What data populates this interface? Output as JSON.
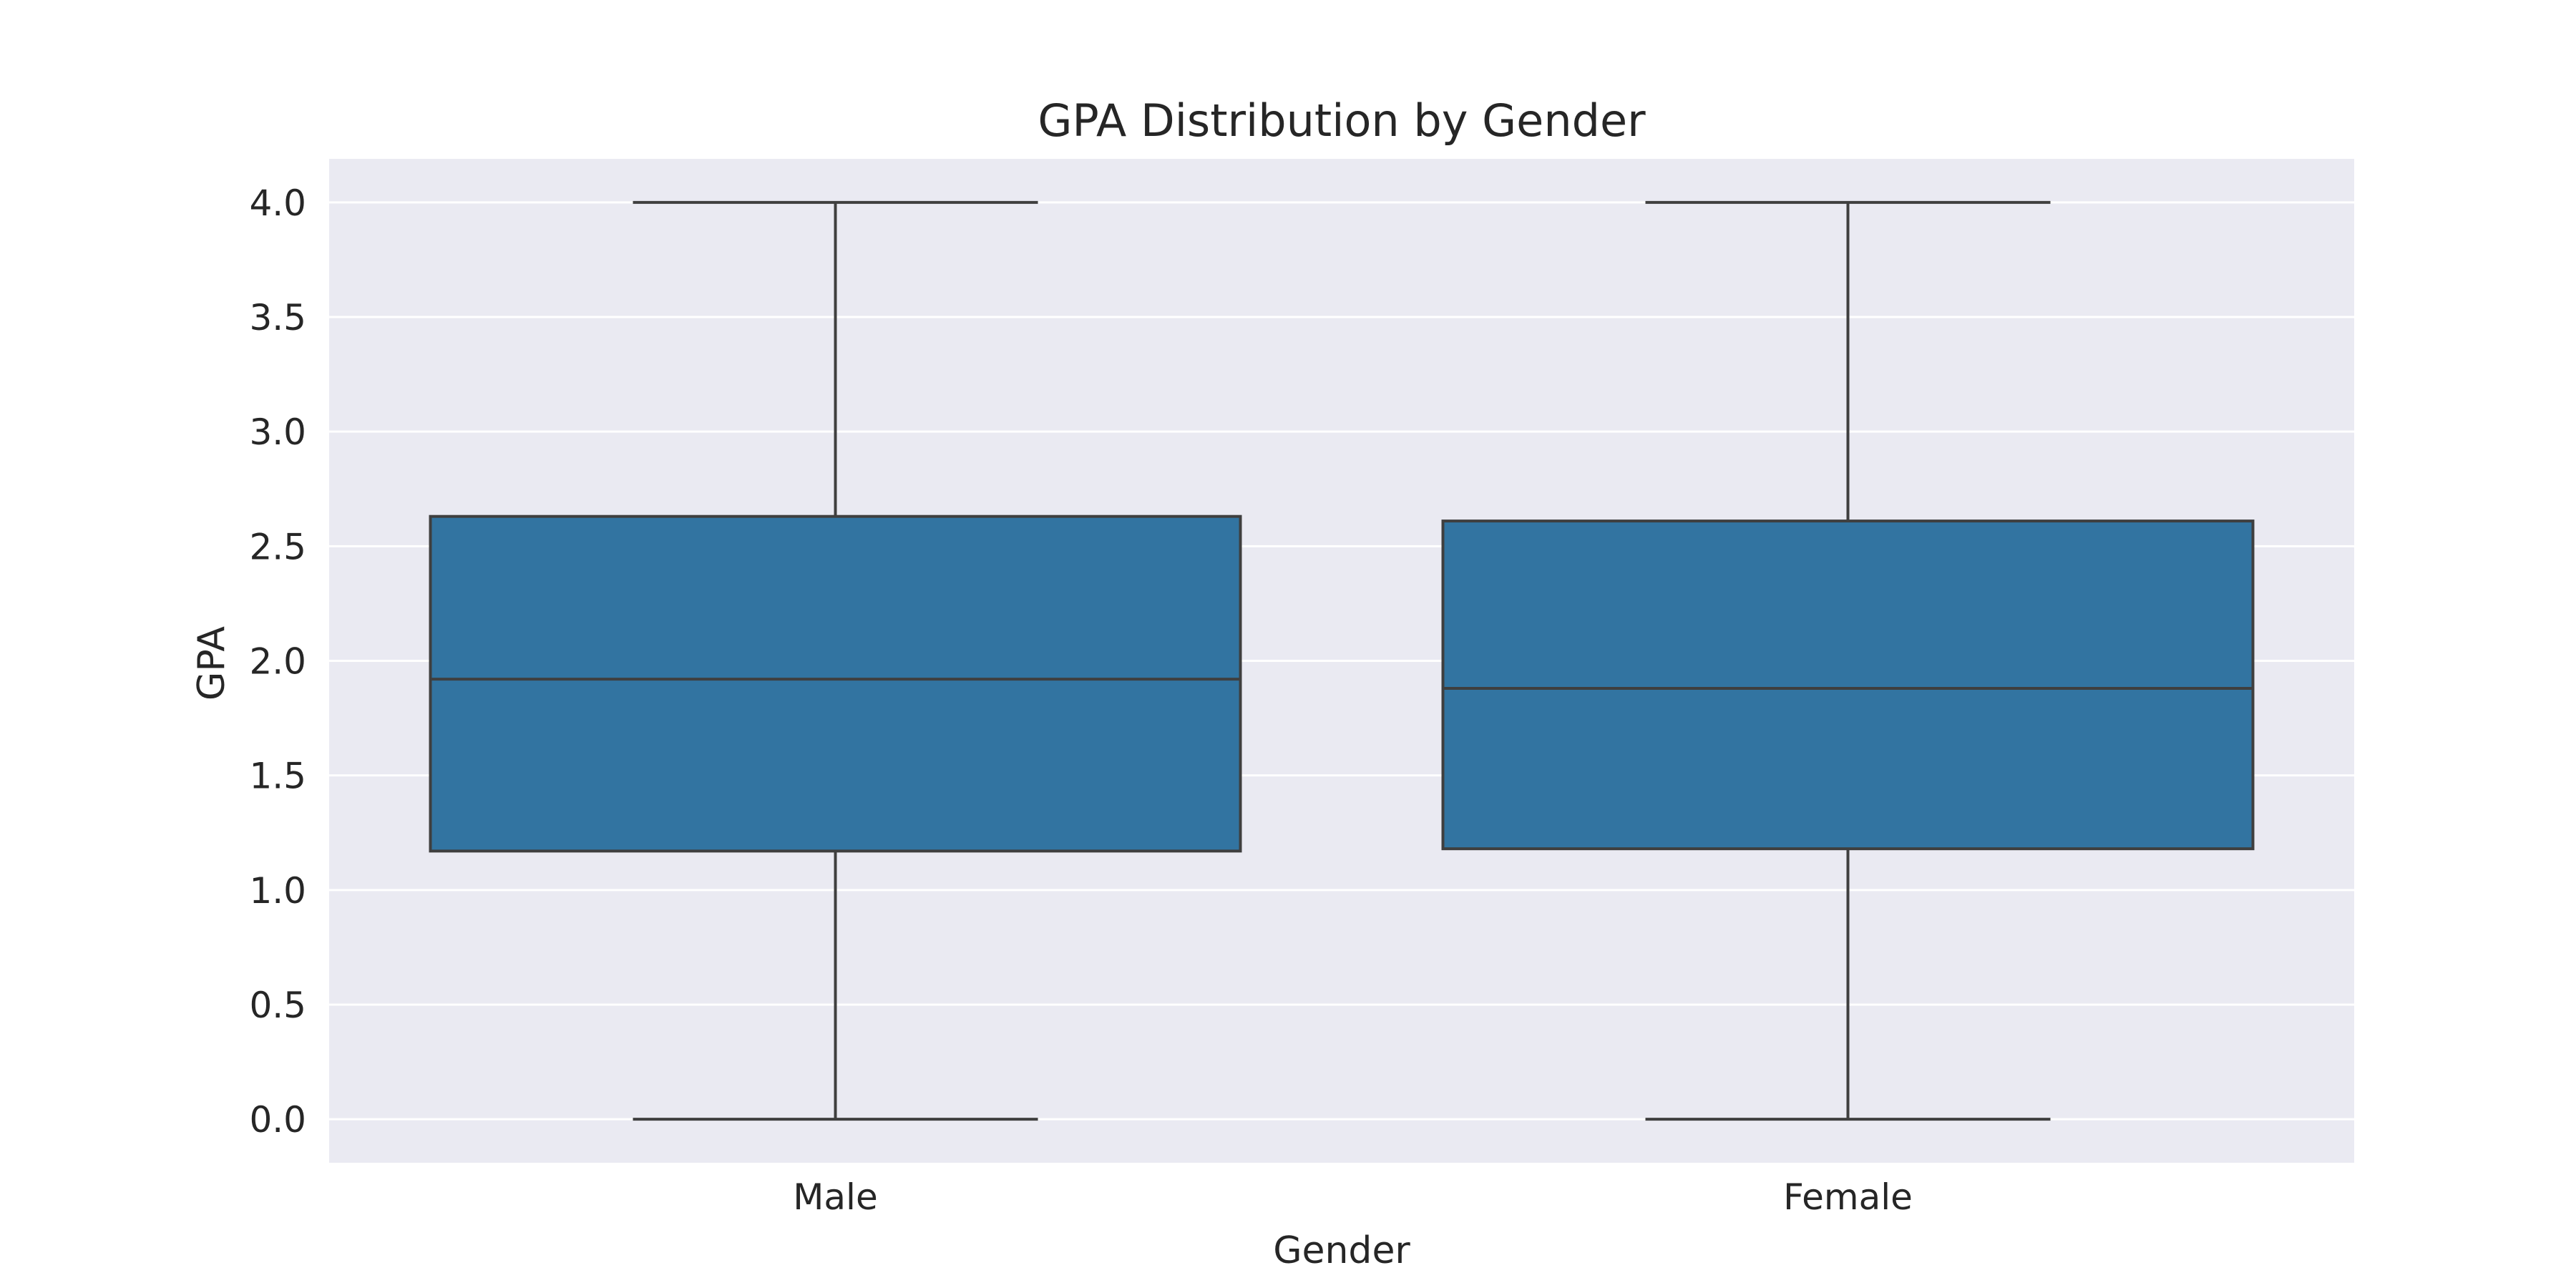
{
  "chart_data": {
    "type": "boxplot",
    "title": "GPA Distribution by Gender",
    "xlabel": "Gender",
    "ylabel": "GPA",
    "ylim": [
      -0.19,
      4.19
    ],
    "yticks": [
      0.0,
      0.5,
      1.0,
      1.5,
      2.0,
      2.5,
      3.0,
      3.5,
      4.0
    ],
    "ytick_labels": [
      "0.0",
      "0.5",
      "1.0",
      "1.5",
      "2.0",
      "2.5",
      "3.0",
      "3.5",
      "4.0"
    ],
    "categories": [
      "Male",
      "Female"
    ],
    "boxes": [
      {
        "category": "Male",
        "min": 0.0,
        "q1": 1.17,
        "median": 1.92,
        "q3": 2.63,
        "max": 4.0
      },
      {
        "category": "Female",
        "min": 0.0,
        "q1": 1.18,
        "median": 1.88,
        "q3": 2.61,
        "max": 4.0
      }
    ],
    "grid": true,
    "colors": {
      "box_fill": "#3274a1",
      "box_edge": "#3f3f3f",
      "plot_background": "#eaeaf2",
      "gridline": "#ffffff",
      "text": "#262626"
    }
  }
}
